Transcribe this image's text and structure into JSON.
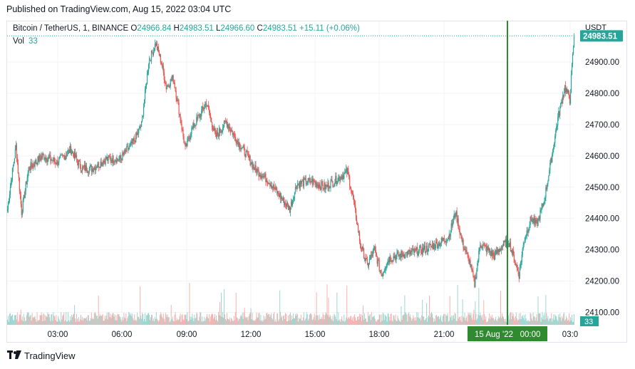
{
  "published": "Published on TradingView.com, Aug 15, 2022 03:04 UTC",
  "legend": {
    "symbol": "Bitcoin / TetherUS, 1, BINANCE",
    "o_label": "O",
    "o": "24966.84",
    "h_label": "H",
    "h": "24983.51",
    "l_label": "L",
    "l": "24966.60",
    "c_label": "C",
    "c": "24983.51",
    "change": "+15.11 (+0.06%)",
    "vol_label": "Vol",
    "vol": "33"
  },
  "currency": "USDT",
  "last_price_label": "24983.51",
  "last_volume_label": "33",
  "crosshair_time_label": "15 Aug '22   00:00",
  "footer_brand": "TradingView",
  "colors": {
    "up": "#26a69a",
    "down": "#ef5350",
    "crosshair": "#2e8b2e",
    "grid": "#f0f3fa"
  },
  "chart_data": {
    "type": "candlestick",
    "ylim": [
      24060,
      25030
    ],
    "y_ticks": [
      24100,
      24200,
      24300,
      24400,
      24500,
      24600,
      24700,
      24800,
      24900
    ],
    "y_tick_labels": [
      "24100.00",
      "24200.00",
      "24300.00",
      "24400.00",
      "24500.00",
      "24600.00",
      "24700.00",
      "24800.00",
      "24900.00"
    ],
    "x_tick_labels": [
      "03:00",
      "06:00",
      "09:00",
      "12:00",
      "15:00",
      "18:00",
      "21:00",
      "00:00",
      "03:0"
    ],
    "last_price": 24983.51,
    "anchors": [
      [
        0,
        24430
      ],
      [
        5,
        24520
      ],
      [
        12,
        24630
      ],
      [
        20,
        24420
      ],
      [
        30,
        24560
      ],
      [
        50,
        24600
      ],
      [
        70,
        24580
      ],
      [
        90,
        24620
      ],
      [
        105,
        24560
      ],
      [
        120,
        24560
      ],
      [
        140,
        24590
      ],
      [
        160,
        24590
      ],
      [
        180,
        24650
      ],
      [
        190,
        24700
      ],
      [
        200,
        24900
      ],
      [
        210,
        24960
      ],
      [
        218,
        24900
      ],
      [
        225,
        24820
      ],
      [
        235,
        24850
      ],
      [
        245,
        24720
      ],
      [
        252,
        24620
      ],
      [
        260,
        24680
      ],
      [
        270,
        24720
      ],
      [
        282,
        24770
      ],
      [
        295,
        24660
      ],
      [
        310,
        24710
      ],
      [
        325,
        24650
      ],
      [
        340,
        24600
      ],
      [
        350,
        24560
      ],
      [
        370,
        24520
      ],
      [
        390,
        24460
      ],
      [
        400,
        24430
      ],
      [
        410,
        24510
      ],
      [
        430,
        24520
      ],
      [
        450,
        24500
      ],
      [
        470,
        24530
      ],
      [
        482,
        24550
      ],
      [
        490,
        24460
      ],
      [
        500,
        24320
      ],
      [
        510,
        24250
      ],
      [
        520,
        24300
      ],
      [
        530,
        24220
      ],
      [
        540,
        24270
      ],
      [
        550,
        24280
      ],
      [
        570,
        24290
      ],
      [
        590,
        24300
      ],
      [
        610,
        24320
      ],
      [
        625,
        24340
      ],
      [
        635,
        24420
      ],
      [
        645,
        24320
      ],
      [
        655,
        24260
      ],
      [
        662,
        24190
      ],
      [
        670,
        24320
      ],
      [
        680,
        24300
      ],
      [
        690,
        24280
      ],
      [
        700,
        24310
      ],
      [
        710,
        24330
      ],
      [
        718,
        24270
      ],
      [
        725,
        24220
      ],
      [
        732,
        24330
      ],
      [
        742,
        24400
      ],
      [
        750,
        24380
      ],
      [
        760,
        24450
      ],
      [
        770,
        24580
      ],
      [
        780,
        24720
      ],
      [
        790,
        24820
      ],
      [
        797,
        24780
      ],
      [
        803,
        24983.51
      ]
    ],
    "volume_label": "Vol 33"
  }
}
